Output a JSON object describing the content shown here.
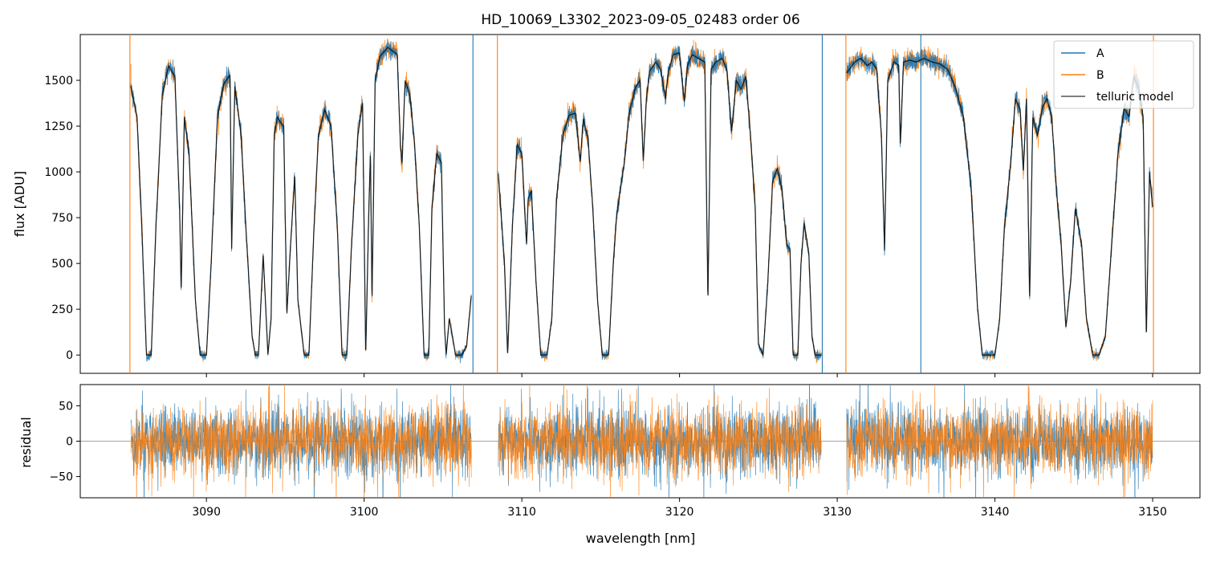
{
  "chart_data": [
    {
      "type": "line",
      "panel": "top",
      "title": "HD_10069_L3302_2023-09-05_02483  order 06",
      "xlabel": "",
      "ylabel": "flux [ADU]",
      "xlim": [
        3082,
        3153
      ],
      "ylim": [
        -100,
        1750
      ],
      "xticks": [
        3090,
        3100,
        3110,
        3120,
        3130,
        3140,
        3150
      ],
      "yticks": [
        0,
        250,
        500,
        750,
        1000,
        1250,
        1500
      ],
      "ytick_labels": [
        "0",
        "250",
        "500",
        "750",
        "1000",
        "1250",
        "1500"
      ],
      "grid": false,
      "legend_position": "top-right",
      "segments": [
        [
          3085.2,
          3106.8
        ],
        [
          3108.5,
          3129.0
        ],
        [
          3130.6,
          3150.0
        ]
      ],
      "series": [
        {
          "name": "A",
          "color": "#1f77b4",
          "noise": 18
        },
        {
          "name": "B",
          "color": "#ff7f0e",
          "noise": 22
        },
        {
          "name": "telluric model",
          "color": "#000000",
          "noise": 0
        }
      ],
      "model_points": [
        [
          3085.2,
          1470
        ],
        [
          3085.6,
          1300
        ],
        [
          3085.9,
          700
        ],
        [
          3086.2,
          0
        ],
        [
          3086.5,
          0
        ],
        [
          3086.8,
          700
        ],
        [
          3087.2,
          1420
        ],
        [
          3087.6,
          1580
        ],
        [
          3088.0,
          1520
        ],
        [
          3088.3,
          800
        ],
        [
          3088.4,
          350
        ],
        [
          3088.6,
          1300
        ],
        [
          3088.9,
          1100
        ],
        [
          3089.3,
          300
        ],
        [
          3089.6,
          0
        ],
        [
          3090.0,
          0
        ],
        [
          3090.3,
          500
        ],
        [
          3090.7,
          1300
        ],
        [
          3091.1,
          1480
        ],
        [
          3091.5,
          1530
        ],
        [
          3091.6,
          580
        ],
        [
          3091.8,
          1470
        ],
        [
          3092.2,
          1200
        ],
        [
          3092.5,
          700
        ],
        [
          3092.9,
          100
        ],
        [
          3093.1,
          0
        ],
        [
          3093.3,
          0
        ],
        [
          3093.6,
          550
        ],
        [
          3093.9,
          0
        ],
        [
          3094.1,
          200
        ],
        [
          3094.3,
          1200
        ],
        [
          3094.5,
          1300
        ],
        [
          3094.7,
          1270
        ],
        [
          3094.9,
          1250
        ],
        [
          3095.1,
          220
        ],
        [
          3095.3,
          550
        ],
        [
          3095.6,
          980
        ],
        [
          3095.8,
          300
        ],
        [
          3096.2,
          0
        ],
        [
          3096.5,
          0
        ],
        [
          3096.8,
          650
        ],
        [
          3097.1,
          1200
        ],
        [
          3097.5,
          1340
        ],
        [
          3097.9,
          1250
        ],
        [
          3098.3,
          700
        ],
        [
          3098.6,
          0
        ],
        [
          3098.9,
          0
        ],
        [
          3099.2,
          600
        ],
        [
          3099.6,
          1200
        ],
        [
          3099.9,
          1380
        ],
        [
          3100.1,
          0
        ],
        [
          3100.3,
          800
        ],
        [
          3100.4,
          1100
        ],
        [
          3100.5,
          300
        ],
        [
          3100.7,
          1500
        ],
        [
          3101.0,
          1630
        ],
        [
          3101.5,
          1680
        ],
        [
          3102.1,
          1640
        ],
        [
          3102.3,
          1150
        ],
        [
          3102.4,
          1050
        ],
        [
          3102.6,
          1500
        ],
        [
          3102.9,
          1420
        ],
        [
          3103.2,
          1150
        ],
        [
          3103.5,
          700
        ],
        [
          3103.8,
          0
        ],
        [
          3104.1,
          0
        ],
        [
          3104.3,
          800
        ],
        [
          3104.6,
          1100
        ],
        [
          3104.9,
          1050
        ],
        [
          3105.1,
          150
        ],
        [
          3105.2,
          0
        ],
        [
          3105.4,
          200
        ],
        [
          3105.6,
          100
        ],
        [
          3105.8,
          0
        ],
        [
          3106.2,
          0
        ],
        [
          3106.5,
          50
        ],
        [
          3106.8,
          330
        ],
        [
          3108.5,
          1000
        ],
        [
          3108.9,
          500
        ],
        [
          3109.1,
          0
        ],
        [
          3109.4,
          700
        ],
        [
          3109.7,
          1150
        ],
        [
          3110.0,
          1100
        ],
        [
          3110.3,
          600
        ],
        [
          3110.4,
          850
        ],
        [
          3110.6,
          900
        ],
        [
          3110.9,
          400
        ],
        [
          3111.2,
          0
        ],
        [
          3111.6,
          0
        ],
        [
          3111.9,
          200
        ],
        [
          3112.2,
          850
        ],
        [
          3112.6,
          1200
        ],
        [
          3113.0,
          1310
        ],
        [
          3113.4,
          1320
        ],
        [
          3113.7,
          1050
        ],
        [
          3113.9,
          1290
        ],
        [
          3114.2,
          1180
        ],
        [
          3114.5,
          800
        ],
        [
          3114.8,
          300
        ],
        [
          3115.1,
          0
        ],
        [
          3115.5,
          0
        ],
        [
          3115.8,
          500
        ],
        [
          3116.0,
          750
        ],
        [
          3116.2,
          880
        ],
        [
          3116.5,
          1050
        ],
        [
          3116.8,
          1320
        ],
        [
          3117.2,
          1460
        ],
        [
          3117.5,
          1500
        ],
        [
          3117.7,
          1060
        ],
        [
          3117.9,
          1400
        ],
        [
          3118.1,
          1550
        ],
        [
          3118.5,
          1600
        ],
        [
          3118.8,
          1560
        ],
        [
          3119.1,
          1400
        ],
        [
          3119.3,
          1550
        ],
        [
          3119.6,
          1640
        ],
        [
          3120.0,
          1650
        ],
        [
          3120.3,
          1380
        ],
        [
          3120.5,
          1580
        ],
        [
          3120.8,
          1640
        ],
        [
          3121.2,
          1620
        ],
        [
          3121.6,
          1600
        ],
        [
          3121.8,
          300
        ],
        [
          3122.0,
          1560
        ],
        [
          3122.3,
          1600
        ],
        [
          3122.7,
          1620
        ],
        [
          3123.0,
          1560
        ],
        [
          3123.3,
          1220
        ],
        [
          3123.6,
          1500
        ],
        [
          3123.9,
          1450
        ],
        [
          3124.2,
          1520
        ],
        [
          3124.5,
          1200
        ],
        [
          3124.8,
          800
        ],
        [
          3125.0,
          60
        ],
        [
          3125.3,
          0
        ],
        [
          3125.6,
          400
        ],
        [
          3125.9,
          950
        ],
        [
          3126.2,
          1020
        ],
        [
          3126.5,
          900
        ],
        [
          3126.8,
          600
        ],
        [
          3127.0,
          580
        ],
        [
          3127.2,
          0
        ],
        [
          3127.5,
          0
        ],
        [
          3127.7,
          500
        ],
        [
          3127.9,
          720
        ],
        [
          3128.2,
          550
        ],
        [
          3128.4,
          100
        ],
        [
          3128.6,
          0
        ],
        [
          3129.0,
          0
        ],
        [
          3130.6,
          1540
        ],
        [
          3131.1,
          1600
        ],
        [
          3131.5,
          1620
        ],
        [
          3131.9,
          1580
        ],
        [
          3132.2,
          1600
        ],
        [
          3132.5,
          1560
        ],
        [
          3132.8,
          1200
        ],
        [
          3133.0,
          570
        ],
        [
          3133.2,
          1500
        ],
        [
          3133.6,
          1600
        ],
        [
          3133.9,
          1580
        ],
        [
          3134.0,
          1140
        ],
        [
          3134.2,
          1600
        ],
        [
          3134.6,
          1610
        ],
        [
          3135.0,
          1600
        ],
        [
          3135.5,
          1620
        ],
        [
          3136.0,
          1600
        ],
        [
          3136.5,
          1590
        ],
        [
          3137.0,
          1560
        ],
        [
          3137.5,
          1460
        ],
        [
          3138.0,
          1300
        ],
        [
          3138.5,
          900
        ],
        [
          3138.9,
          250
        ],
        [
          3139.2,
          0
        ],
        [
          3139.6,
          0
        ],
        [
          3140.0,
          0
        ],
        [
          3140.3,
          200
        ],
        [
          3140.6,
          700
        ],
        [
          3141.0,
          1050
        ],
        [
          3141.3,
          1400
        ],
        [
          3141.6,
          1340
        ],
        [
          3141.8,
          1000
        ],
        [
          3142.0,
          1400
        ],
        [
          3142.2,
          300
        ],
        [
          3142.4,
          1300
        ],
        [
          3142.7,
          1200
        ],
        [
          3143.0,
          1350
        ],
        [
          3143.3,
          1400
        ],
        [
          3143.6,
          1300
        ],
        [
          3143.9,
          900
        ],
        [
          3144.2,
          600
        ],
        [
          3144.5,
          150
        ],
        [
          3144.8,
          400
        ],
        [
          3145.1,
          800
        ],
        [
          3145.5,
          600
        ],
        [
          3145.8,
          200
        ],
        [
          3146.2,
          0
        ],
        [
          3146.6,
          0
        ],
        [
          3147.0,
          100
        ],
        [
          3147.4,
          600
        ],
        [
          3147.8,
          1100
        ],
        [
          3148.2,
          1350
        ],
        [
          3148.5,
          1300
        ],
        [
          3148.8,
          1520
        ],
        [
          3149.1,
          1460
        ],
        [
          3149.4,
          1300
        ],
        [
          3149.6,
          100
        ],
        [
          3149.8,
          1000
        ],
        [
          3150.0,
          800
        ]
      ]
    },
    {
      "type": "line",
      "panel": "bottom",
      "title": "",
      "xlabel": "wavelength [nm]",
      "ylabel": "residual",
      "xlim": [
        3082,
        3153
      ],
      "ylim": [
        -80,
        80
      ],
      "xticks": [
        3090,
        3100,
        3110,
        3120,
        3130,
        3140,
        3150
      ],
      "xtick_labels": [
        "3090",
        "3100",
        "3110",
        "3120",
        "3130",
        "3140",
        "3150"
      ],
      "yticks": [
        50,
        0,
        -50
      ],
      "ytick_labels": [
        "50",
        "0",
        "−50"
      ],
      "reference_line": 0,
      "segments": [
        [
          3085.2,
          3106.8
        ],
        [
          3108.5,
          3129.0
        ],
        [
          3130.6,
          3150.0
        ]
      ],
      "series": [
        {
          "name": "A",
          "color": "#1f77b4",
          "noise": 24
        },
        {
          "name": "B",
          "color": "#ff7f0e",
          "noise": 24
        }
      ]
    }
  ],
  "legend": {
    "entries": [
      {
        "label": "A",
        "color": "#1f77b4"
      },
      {
        "label": "B",
        "color": "#ff7f0e"
      },
      {
        "label": "telluric model",
        "color": "#555555"
      }
    ]
  }
}
